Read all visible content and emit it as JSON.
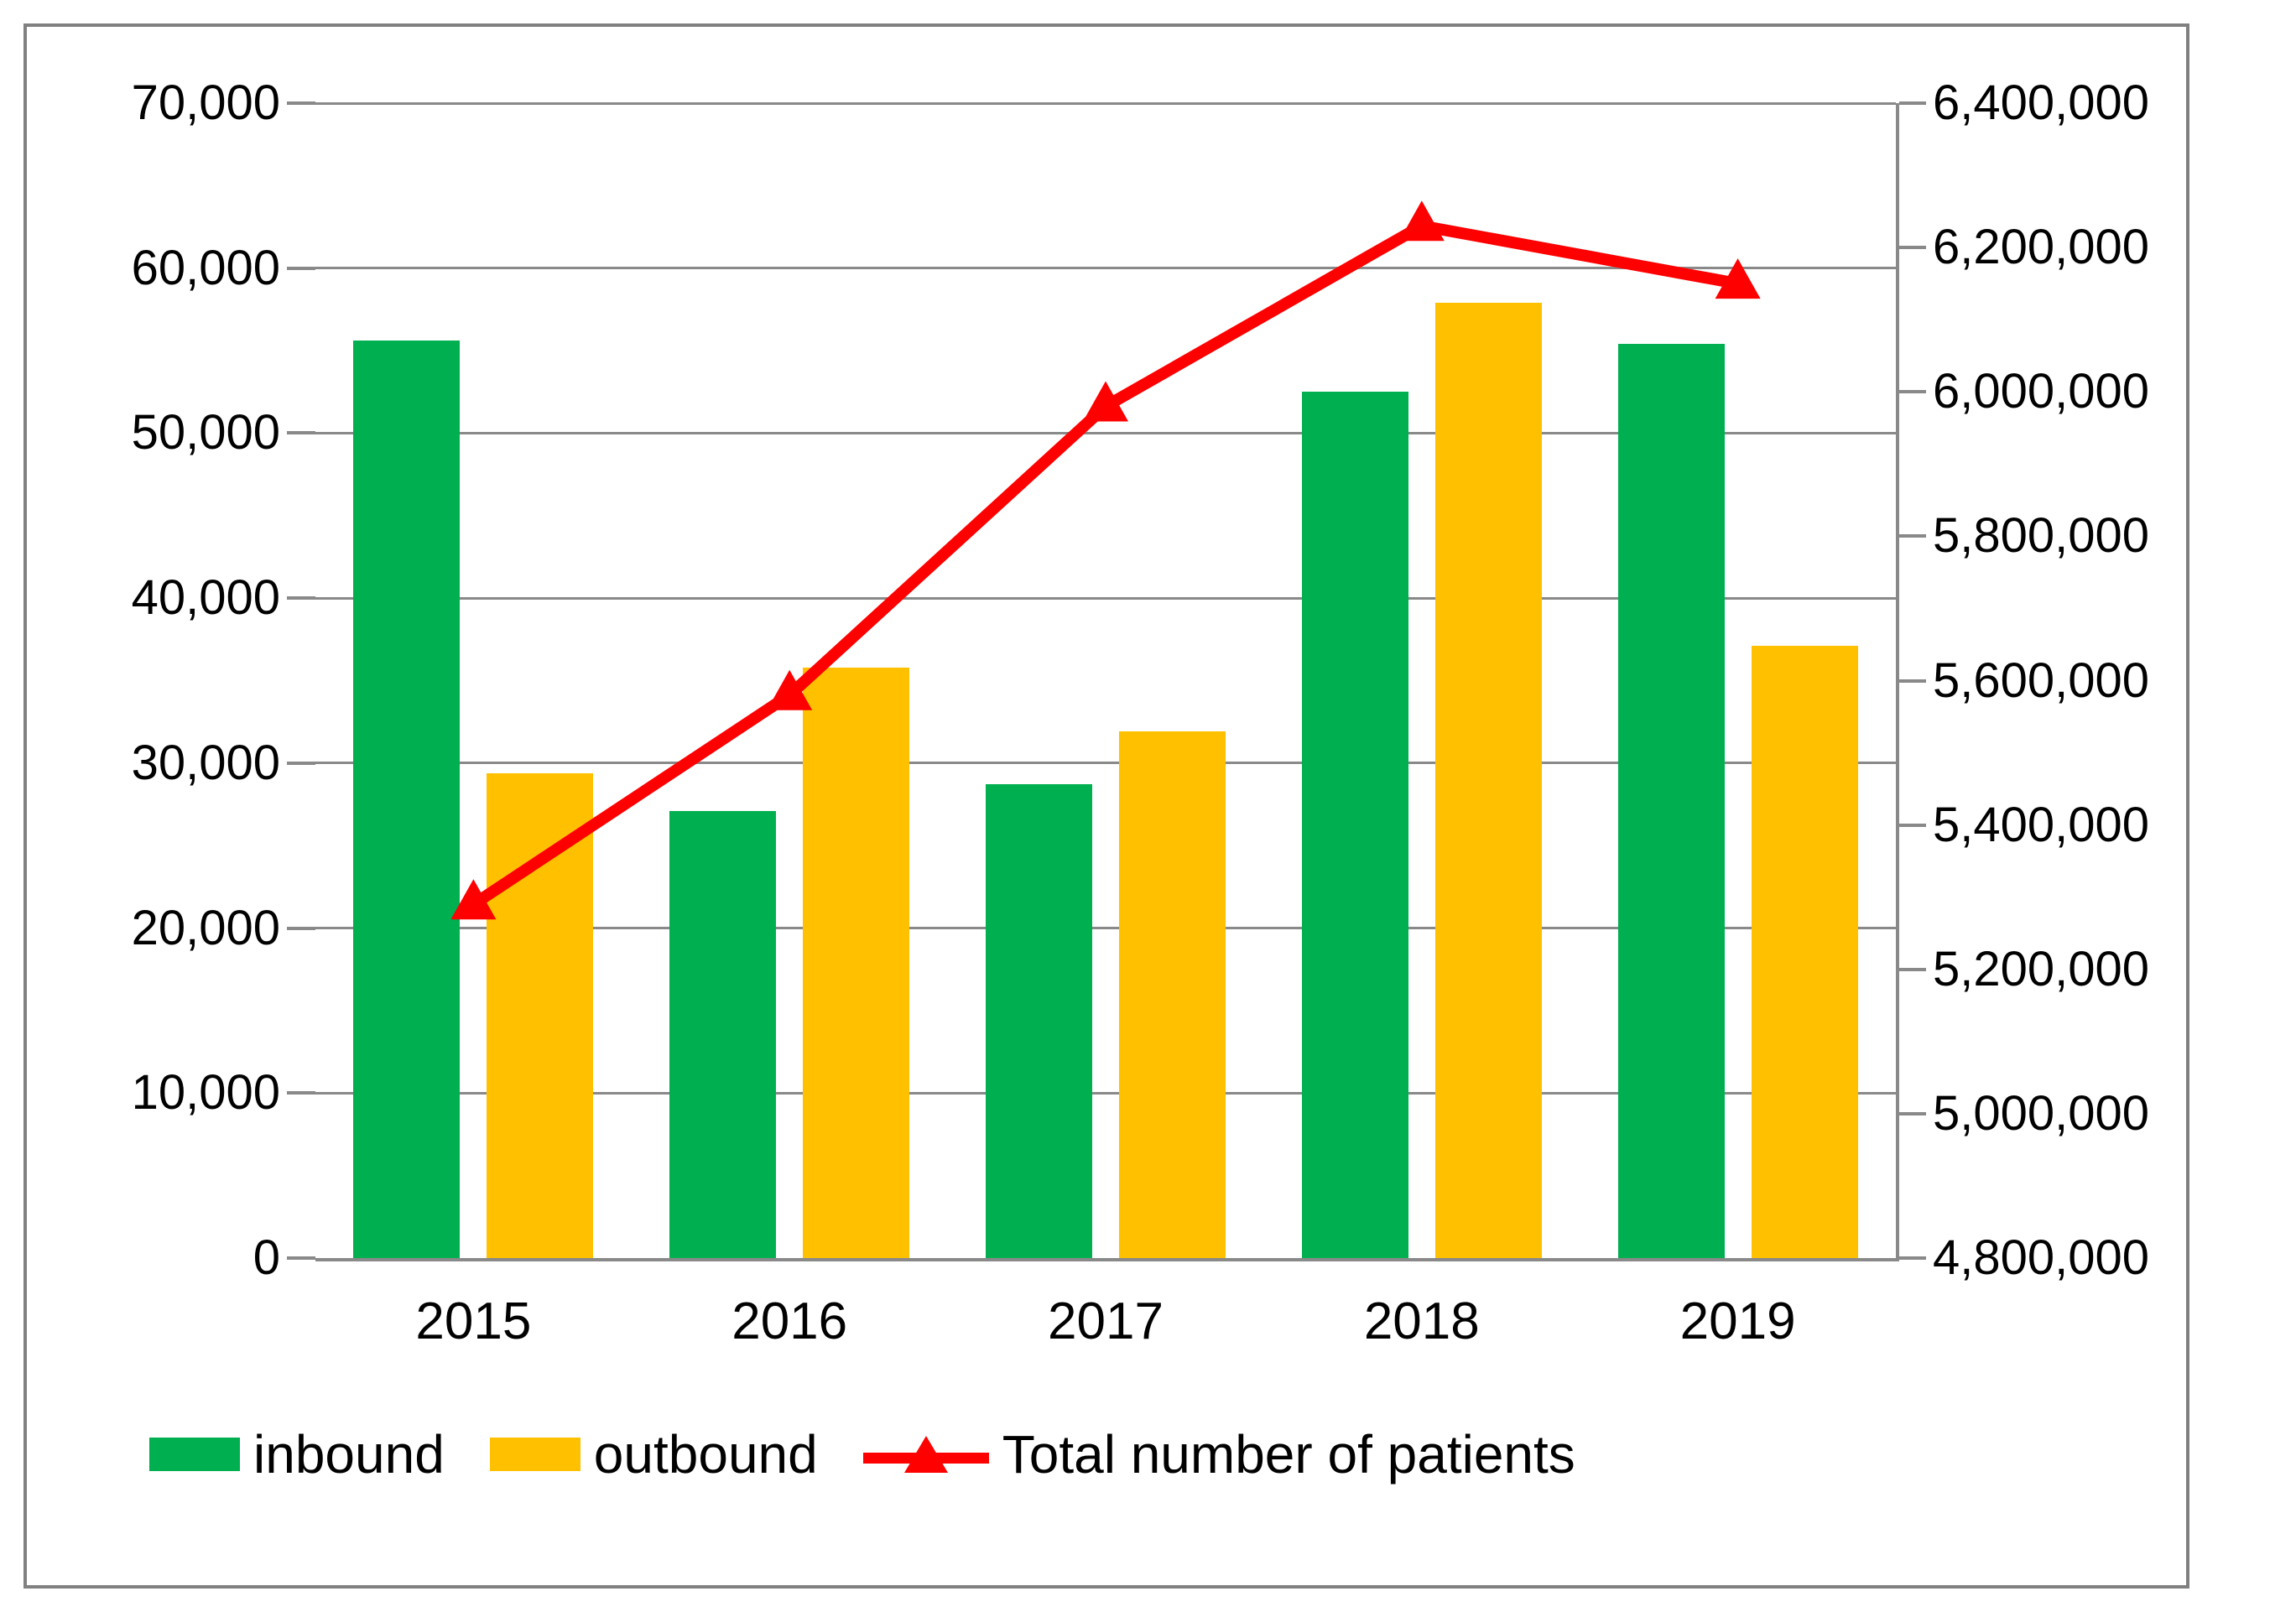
{
  "chart_data": {
    "type": "bar",
    "subtype": "grouped-bars-with-line-combo",
    "title": "",
    "categories": [
      "2015",
      "2016",
      "2017",
      "2018",
      "2019"
    ],
    "series": [
      {
        "name": "inbound",
        "type": "bar",
        "axis": "left",
        "color": "#00B050",
        "values": [
          55600,
          27100,
          28700,
          52500,
          55400
        ]
      },
      {
        "name": "outbound",
        "type": "bar",
        "axis": "left",
        "color": "#FFC000",
        "values": [
          29400,
          35800,
          31900,
          57900,
          37100
        ]
      },
      {
        "name": "Total number of patients",
        "type": "line",
        "axis": "right",
        "color": "#FF0000",
        "marker": "triangle-up",
        "values": [
          5290000,
          5580000,
          5980000,
          6230000,
          6150000
        ]
      }
    ],
    "left_axis": {
      "min": 0,
      "max": 70000,
      "step": 10000,
      "tick_labels_top_to_bottom": [
        "70,000",
        "60,000",
        "50,000",
        "40,000",
        "30,000",
        "20,000",
        "10,000",
        "0"
      ]
    },
    "right_axis": {
      "min": 4800000,
      "max": 6400000,
      "step": 200000,
      "tick_labels_top_to_bottom": [
        "6,400,000",
        "6,200,000",
        "6,000,000",
        "5,800,000",
        "5,600,000",
        "5,400,000",
        "5,200,000",
        "5,000,000",
        "4,800,000"
      ]
    },
    "grid": true,
    "legend_position": "bottom-left",
    "legend": [
      "inbound",
      "outbound",
      "Total number of patients"
    ]
  },
  "colors": {
    "inbound_green": "#00B050",
    "outbound_gold": "#FFC000",
    "line_red": "#FF0000",
    "gridline_gray": "#898989",
    "border_gray": "#808080",
    "background": "#ffffff",
    "text": "#000000"
  }
}
